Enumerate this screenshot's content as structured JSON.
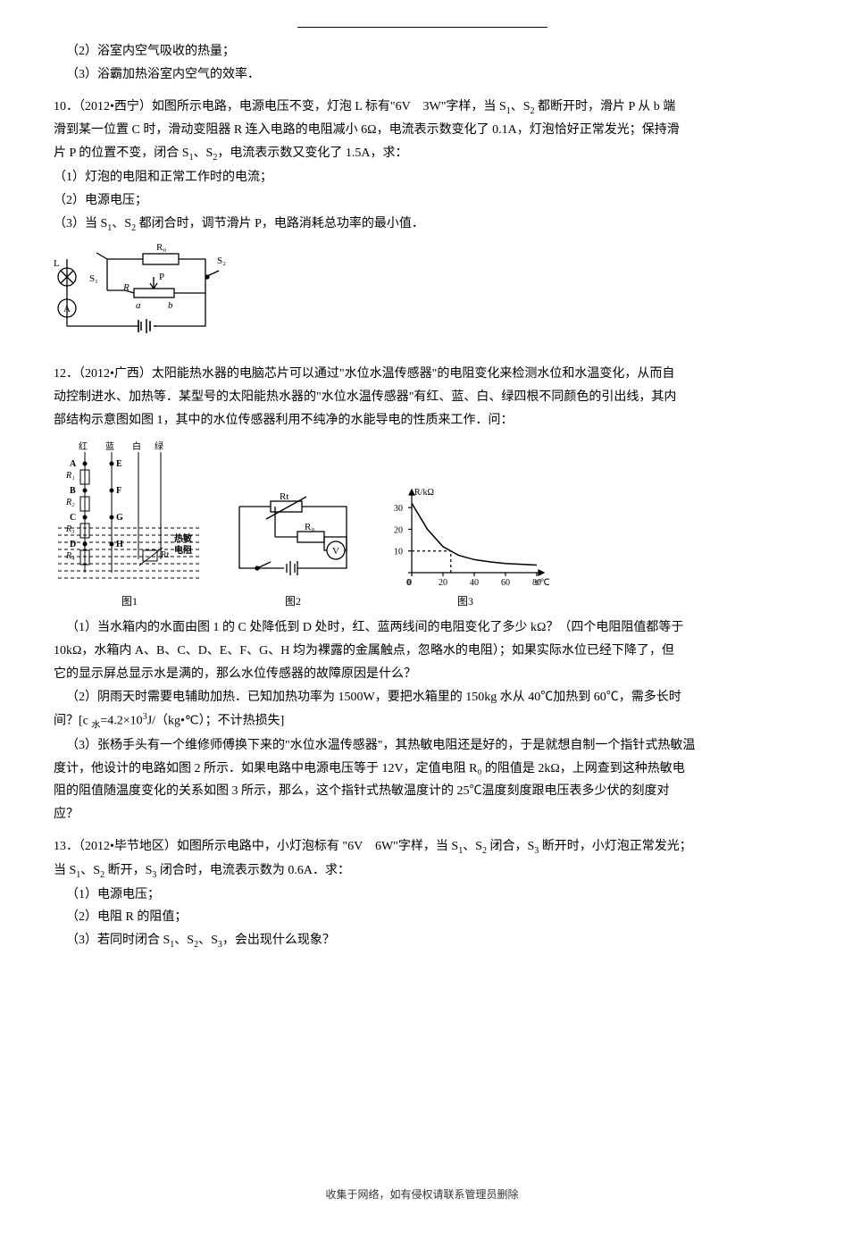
{
  "frag": {
    "l1": "（2）浴室内空气吸收的热量；",
    "l2": "（3）浴霸加热浴室内空气的效率．"
  },
  "q10": {
    "p1a": "10．（2012•西宁）如图所示电路，电源电压不变，灯泡 L 标有\"6V　3W\"字样，当 S",
    "p1b": "、S",
    "p1c": " 都断开时，滑片 P 从 b 端",
    "p2": "滑到某一位置 C 时，滑动变阻器 R 连入电路的电阻减小 6Ω，电流表示数变化了 0.1A，灯泡恰好正常发光；保持滑",
    "p3a": "片 P 的位置不变，闭合 S",
    "p3b": "、S",
    "p3c": "，电流表示数又变化了 1.5A，求：",
    "s1": "（1）灯泡的电阻和正常工作时的电流；",
    "s2": "（2）电源电压；",
    "s3a": "（3）当 S",
    "s3b": "、S",
    "s3c": " 都闭合时，调节滑片 P，电路消耗总功率的最小值．",
    "circuit_labels": {
      "R0": "R₀",
      "S2": "S₂",
      "S1": "S₁",
      "P": "P",
      "R": "R",
      "a": "a",
      "b": "b",
      "L": "L",
      "A": "A"
    }
  },
  "q12": {
    "p1": "12．（2012•广西）太阳能热水器的电脑芯片可以通过\"水位水温传感器\"的电阻变化来检测水位和水温变化，从而自",
    "p2": "动控制进水、加热等．某型号的太阳能热水器的\"水位水温传感器\"有红、蓝、白、绿四根不同颜色的引出线，其内",
    "p3": "部结构示意图如图 1，其中的水位传感器利用不纯净的水能导电的性质来工作．问：",
    "fig1": {
      "labels": {
        "red": "红",
        "blue": "蓝",
        "white": "白",
        "green": "绿",
        "A": "A",
        "B": "B",
        "C": "C",
        "D": "D",
        "E": "E",
        "F": "F",
        "G": "G",
        "H": "H",
        "R1": "R₁",
        "R2": "R₂",
        "R3": "R₃",
        "R4": "R₄",
        "Rt": "Rt",
        "remin": "热敏",
        "dianzu": "电阻",
        "cap": "图1"
      }
    },
    "fig2": {
      "Rt": "Rt",
      "R0": "R₀",
      "V": "V",
      "cap": "图2"
    },
    "fig3": {
      "ylabel": "R/kΩ",
      "xlabel": "t/℃",
      "cap": "图3",
      "yticks": [
        0,
        10,
        20,
        30
      ],
      "xticks": [
        0,
        20,
        40,
        60,
        80
      ],
      "points": [
        [
          0,
          32
        ],
        [
          10,
          20
        ],
        [
          20,
          12
        ],
        [
          25,
          10
        ],
        [
          30,
          8
        ],
        [
          40,
          6
        ],
        [
          50,
          5
        ],
        [
          60,
          4.2
        ],
        [
          80,
          3.5
        ]
      ],
      "dashx": 25,
      "dashy": 10,
      "axis_color": "#000",
      "curve_color": "#000"
    },
    "s1": "（1）当水箱内的水面由图 1 的 C 处降低到 D 处时，红、蓝两线间的电阻变化了多少 kΩ？（四个电阻阻值都等于",
    "s1b": "10kΩ，水箱内 A、B、C、D、E、F、G、H 均为裸露的金属触点，忽略水的电阻）；如果实际水位已经下降了，但",
    "s1c": "它的显示屏总显示水是满的，那么水位传感器的故障原因是什么？",
    "s2": "（2）阴雨天时需要电辅助加热．已知加热功率为 1500W，要把水箱里的 150kg 水从 40℃加热到 60℃，需多长时",
    "s2b_a": "间？[c ",
    "s2b_b": "=4.2×10",
    "s2b_c": "J/（kg•℃）；不计热损失]",
    "sub_water": "水",
    "s3": "（3）张杨手头有一个维修师傅换下来的\"水位水温传感器\"，其热敏电阻还是好的，于是就想自制一个指针式热敏温",
    "s3b": "度计，他设计的电路如图 2 所示．如果电路中电源电压等于 12V，定值电阻 R₀ 的阻值是 2kΩ，上网查到这种热敏电",
    "s3c": "阻的阻值随温度变化的关系如图 3 所示，那么，这个指针式热敏温度计的 25℃温度刻度跟电压表多少伏的刻度对",
    "s3d": "应？"
  },
  "q13": {
    "p1a": "13．（2012•毕节地区）如图所示电路中，小灯泡标有 \"6V　6W\"字样，当 S",
    "p1b": "、S",
    "p1c": " 闭合，S",
    "p1d": " 断开时，小灯泡正常发光；",
    "p2a": "当 S",
    "p2b": "、S",
    "p2c": " 断开，S",
    "p2d": " 闭合时，电流表示数为 0.6A．求：",
    "s1": "（1）电源电压；",
    "s2": "（2）电阻 R 的阻值；",
    "s3a": "（3）若同时闭合 S",
    "s3b": "、S",
    "s3c": "、S",
    "s3d": "，会出现什么现象？"
  },
  "footer": "收集于网络，如有侵权请联系管理员删除",
  "colors": {
    "text": "#000000",
    "line": "#000000",
    "bg": "#ffffff",
    "water": "#ffffff"
  }
}
